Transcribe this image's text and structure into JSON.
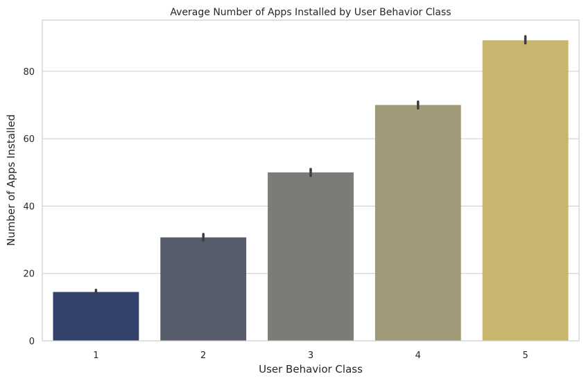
{
  "chart_data": {
    "type": "bar",
    "title": "Average Number of Apps Installed by User Behavior Class",
    "xlabel": "User Behavior Class",
    "ylabel": "Number of Apps Installed",
    "categories": [
      "1",
      "2",
      "3",
      "4",
      "5"
    ],
    "values": [
      14.5,
      30.7,
      50.0,
      70.0,
      89.2
    ],
    "error_bars": [
      [
        14.0,
        15.1
      ],
      [
        29.8,
        31.7
      ],
      [
        49.0,
        51.0
      ],
      [
        69.0,
        71.0
      ],
      [
        88.3,
        90.4
      ]
    ],
    "yticks": [
      0,
      20,
      40,
      60,
      80
    ],
    "ylim": [
      0,
      95.2
    ],
    "grid": "horizontal",
    "colors": [
      "#34416a",
      "#575c6a",
      "#7c7b78",
      "#a19a79",
      "#c8b66e"
    ],
    "frame_color": "#cccccc",
    "grid_color": "#cccccc",
    "errorbar_color": "#3d3d3d"
  }
}
